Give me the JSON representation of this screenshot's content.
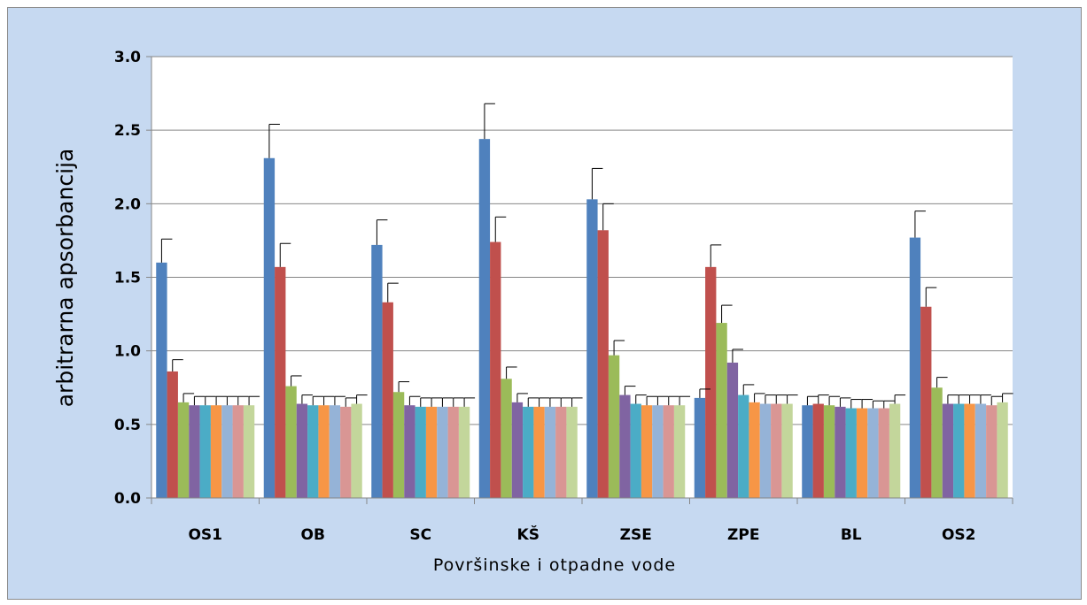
{
  "chart_data": {
    "type": "bar",
    "title": "",
    "xlabel": "Površinske i otpadne vode",
    "ylabel": "arbitrarna apsorbancija",
    "ylim": [
      0,
      3
    ],
    "yticks": [
      "0.0",
      "0.5",
      "1.0",
      "1.5",
      "2.0",
      "2.5",
      "3.0"
    ],
    "grid": true,
    "legend": "none",
    "error_bars": true,
    "categories": [
      "OS1",
      "OB",
      "SC",
      "KŠ",
      "ZSE",
      "ZPE",
      "BL",
      "OS2"
    ],
    "series": [
      {
        "color": "#4f81bd",
        "values": [
          1.6,
          2.31,
          1.72,
          2.44,
          2.03,
          0.68,
          0.63,
          1.77
        ],
        "errors": [
          0.16,
          0.23,
          0.17,
          0.24,
          0.21,
          0.06,
          0.06,
          0.18
        ]
      },
      {
        "color": "#c0504d",
        "values": [
          0.86,
          1.57,
          1.33,
          1.74,
          1.82,
          1.57,
          0.64,
          1.3
        ],
        "errors": [
          0.08,
          0.16,
          0.13,
          0.17,
          0.18,
          0.15,
          0.06,
          0.13
        ]
      },
      {
        "color": "#9bbb59",
        "values": [
          0.65,
          0.76,
          0.72,
          0.81,
          0.97,
          1.19,
          0.63,
          0.75
        ],
        "errors": [
          0.06,
          0.07,
          0.07,
          0.08,
          0.1,
          0.12,
          0.06,
          0.07
        ]
      },
      {
        "color": "#8064a2",
        "values": [
          0.63,
          0.64,
          0.63,
          0.65,
          0.7,
          0.92,
          0.62,
          0.64
        ],
        "errors": [
          0.06,
          0.06,
          0.06,
          0.06,
          0.06,
          0.09,
          0.06,
          0.06
        ]
      },
      {
        "color": "#4bacc6",
        "values": [
          0.63,
          0.63,
          0.62,
          0.62,
          0.64,
          0.7,
          0.61,
          0.64
        ],
        "errors": [
          0.06,
          0.06,
          0.06,
          0.06,
          0.06,
          0.07,
          0.06,
          0.06
        ]
      },
      {
        "color": "#f79646",
        "values": [
          0.63,
          0.63,
          0.62,
          0.62,
          0.63,
          0.65,
          0.61,
          0.64
        ],
        "errors": [
          0.06,
          0.06,
          0.06,
          0.06,
          0.06,
          0.06,
          0.06,
          0.06
        ]
      },
      {
        "color": "#95b3d7",
        "values": [
          0.63,
          0.63,
          0.62,
          0.62,
          0.63,
          0.64,
          0.61,
          0.64
        ],
        "errors": [
          0.06,
          0.06,
          0.06,
          0.06,
          0.06,
          0.06,
          0.05,
          0.06
        ]
      },
      {
        "color": "#d99694",
        "values": [
          0.63,
          0.62,
          0.62,
          0.62,
          0.63,
          0.64,
          0.61,
          0.63
        ],
        "errors": [
          0.06,
          0.06,
          0.06,
          0.06,
          0.06,
          0.06,
          0.05,
          0.06
        ]
      },
      {
        "color": "#c3d69b",
        "values": [
          0.63,
          0.64,
          0.62,
          0.62,
          0.63,
          0.64,
          0.64,
          0.65
        ],
        "errors": [
          0.06,
          0.06,
          0.06,
          0.06,
          0.06,
          0.06,
          0.06,
          0.06
        ]
      }
    ]
  }
}
